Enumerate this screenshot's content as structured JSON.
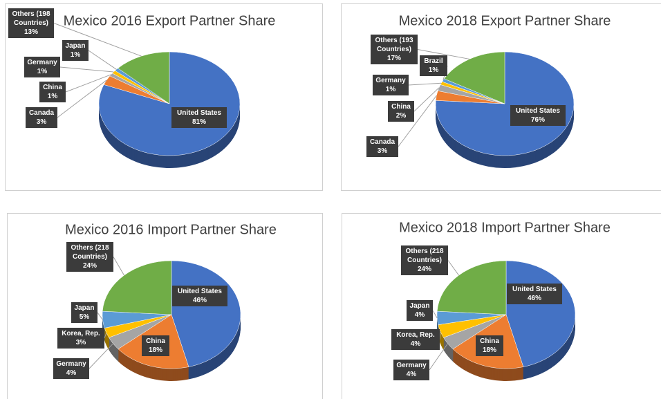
{
  "chart_data": [
    {
      "type": "pie",
      "title": "Mexico 2016 Export Partner Share",
      "categories": [
        "United States",
        "Canada",
        "China",
        "Germany",
        "Japan",
        "Others (198 Countries)"
      ],
      "values": [
        81,
        3,
        1,
        1,
        1,
        13
      ],
      "value_labels": [
        "81%",
        "3%",
        "1%",
        "1%",
        "1%",
        "13%"
      ],
      "colors": [
        "#4472c4",
        "#ed7d31",
        "#a5a5a5",
        "#ffc000",
        "#5b9bd5",
        "#70ad47"
      ]
    },
    {
      "type": "pie",
      "title": "Mexico 2018 Export Partner Share",
      "categories": [
        "United States",
        "Canada",
        "China",
        "Germany",
        "Brazil",
        "Others (193 Countries)"
      ],
      "values": [
        76,
        3,
        2,
        1,
        1,
        17
      ],
      "value_labels": [
        "76%",
        "3%",
        "2%",
        "1%",
        "1%",
        "17%"
      ],
      "colors": [
        "#4472c4",
        "#ed7d31",
        "#a5a5a5",
        "#ffc000",
        "#5b9bd5",
        "#70ad47"
      ]
    },
    {
      "type": "pie",
      "title": "Mexico 2016 Import Partner Share",
      "categories": [
        "United States",
        "China",
        "Germany",
        "Korea, Rep.",
        "Japan",
        "Others (218 Countries)"
      ],
      "values": [
        46,
        18,
        4,
        3,
        5,
        24
      ],
      "value_labels": [
        "46%",
        "18%",
        "4%",
        "3%",
        "5%",
        "24%"
      ],
      "colors": [
        "#4472c4",
        "#ed7d31",
        "#a5a5a5",
        "#ffc000",
        "#5b9bd5",
        "#70ad47"
      ]
    },
    {
      "type": "pie",
      "title": "Mexico 2018 Import Partner Share",
      "categories": [
        "United States",
        "China",
        "Germany",
        "Korea, Rep.",
        "Japan",
        "Others (218 Countries)"
      ],
      "values": [
        46,
        18,
        4,
        4,
        4,
        24
      ],
      "value_labels": [
        "46%",
        "18%",
        "4%",
        "4%",
        "4%",
        "24%"
      ],
      "colors": [
        "#4472c4",
        "#ed7d31",
        "#a5a5a5",
        "#ffc000",
        "#5b9bd5",
        "#70ad47"
      ]
    }
  ]
}
